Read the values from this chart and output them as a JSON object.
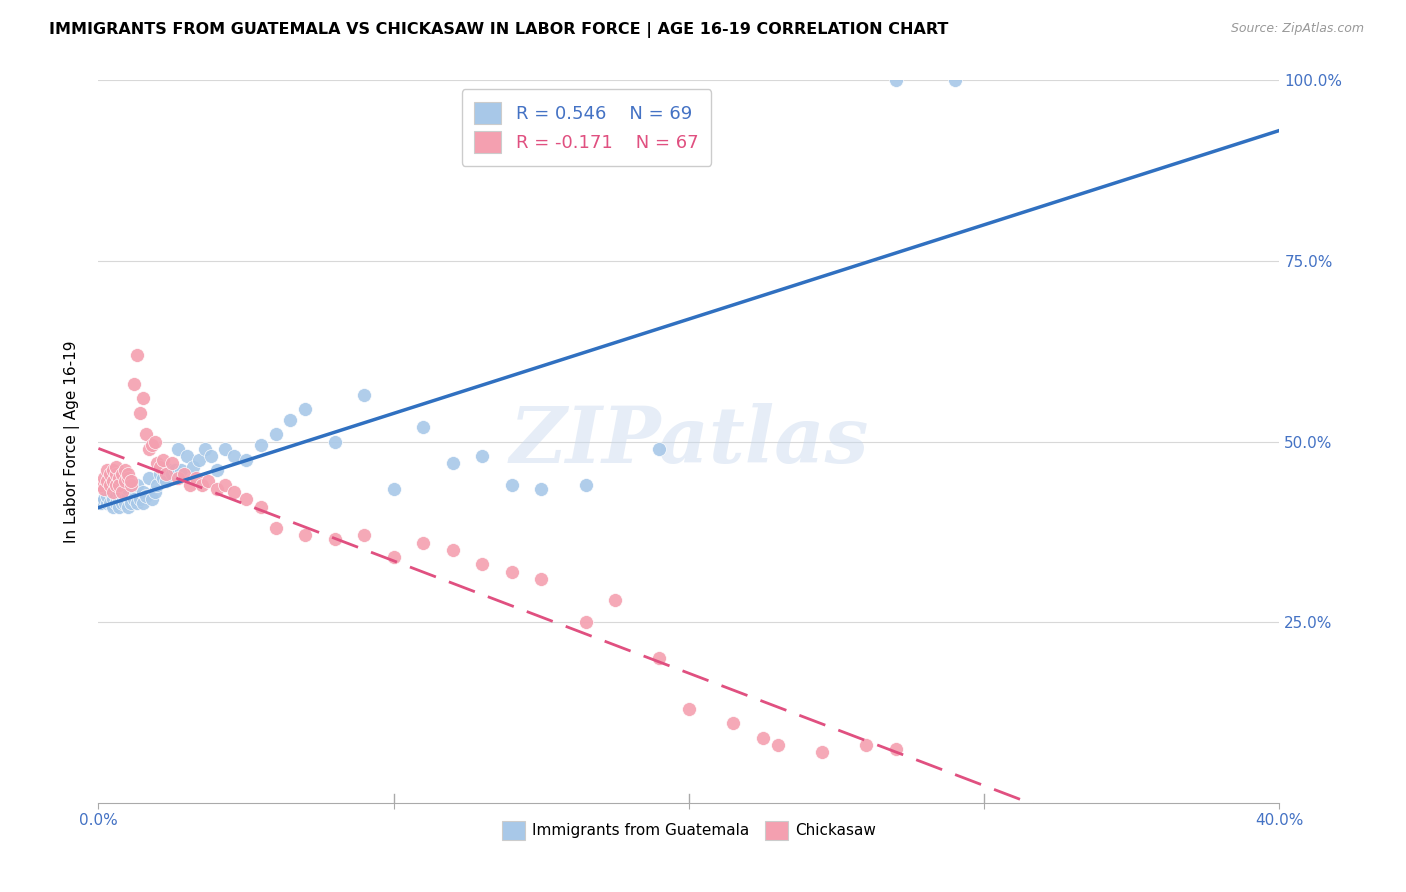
{
  "title": "IMMIGRANTS FROM GUATEMALA VS CHICKASAW IN LABOR FORCE | AGE 16-19 CORRELATION CHART",
  "source": "Source: ZipAtlas.com",
  "ylabel_ticks": [
    "25.0%",
    "50.0%",
    "75.0%",
    "100.0%"
  ],
  "xlabel_ticks_vals": [
    0.0,
    0.1,
    0.2,
    0.3,
    0.4
  ],
  "xlabel_ticks_labels": [
    "",
    "",
    "",
    "",
    ""
  ],
  "legend_blue_R": "R = 0.546",
  "legend_blue_N": "N = 69",
  "legend_pink_R": "R = -0.171",
  "legend_pink_N": "N = 67",
  "blue_color": "#a8c8e8",
  "pink_color": "#f4a0b0",
  "blue_line_color": "#3070c0",
  "pink_line_color": "#e05080",
  "watermark": "ZIPatlas",
  "blue_label": "Immigrants from Guatemala",
  "pink_label": "Chickasaw",
  "blue_scatter_x": [
    0.001,
    0.002,
    0.003,
    0.003,
    0.004,
    0.004,
    0.005,
    0.005,
    0.005,
    0.006,
    0.006,
    0.007,
    0.007,
    0.007,
    0.008,
    0.008,
    0.008,
    0.009,
    0.009,
    0.01,
    0.01,
    0.01,
    0.011,
    0.011,
    0.012,
    0.012,
    0.013,
    0.013,
    0.014,
    0.015,
    0.015,
    0.016,
    0.017,
    0.018,
    0.019,
    0.02,
    0.021,
    0.022,
    0.023,
    0.024,
    0.025,
    0.026,
    0.027,
    0.028,
    0.03,
    0.032,
    0.034,
    0.036,
    0.038,
    0.04,
    0.043,
    0.046,
    0.05,
    0.055,
    0.06,
    0.065,
    0.07,
    0.08,
    0.09,
    0.1,
    0.11,
    0.12,
    0.13,
    0.14,
    0.15,
    0.165,
    0.19,
    0.27,
    0.29
  ],
  "blue_scatter_y": [
    0.415,
    0.42,
    0.415,
    0.425,
    0.43,
    0.415,
    0.41,
    0.42,
    0.435,
    0.425,
    0.415,
    0.42,
    0.43,
    0.41,
    0.415,
    0.425,
    0.44,
    0.42,
    0.415,
    0.41,
    0.425,
    0.435,
    0.42,
    0.415,
    0.43,
    0.42,
    0.415,
    0.44,
    0.42,
    0.415,
    0.43,
    0.425,
    0.45,
    0.42,
    0.43,
    0.44,
    0.455,
    0.45,
    0.445,
    0.46,
    0.455,
    0.46,
    0.49,
    0.46,
    0.48,
    0.465,
    0.475,
    0.49,
    0.48,
    0.46,
    0.49,
    0.48,
    0.475,
    0.495,
    0.51,
    0.53,
    0.545,
    0.5,
    0.565,
    0.435,
    0.52,
    0.47,
    0.48,
    0.44,
    0.435,
    0.44,
    0.49,
    1.0,
    1.0
  ],
  "pink_scatter_x": [
    0.001,
    0.002,
    0.002,
    0.003,
    0.003,
    0.004,
    0.004,
    0.005,
    0.005,
    0.005,
    0.006,
    0.006,
    0.006,
    0.007,
    0.007,
    0.008,
    0.008,
    0.009,
    0.009,
    0.01,
    0.01,
    0.011,
    0.011,
    0.012,
    0.013,
    0.014,
    0.015,
    0.016,
    0.017,
    0.018,
    0.019,
    0.02,
    0.021,
    0.022,
    0.023,
    0.025,
    0.027,
    0.029,
    0.031,
    0.033,
    0.035,
    0.037,
    0.04,
    0.043,
    0.046,
    0.05,
    0.055,
    0.06,
    0.07,
    0.08,
    0.09,
    0.1,
    0.11,
    0.12,
    0.13,
    0.14,
    0.15,
    0.165,
    0.175,
    0.19,
    0.2,
    0.215,
    0.225,
    0.23,
    0.245,
    0.26,
    0.27
  ],
  "pink_scatter_y": [
    0.44,
    0.435,
    0.45,
    0.445,
    0.46,
    0.44,
    0.455,
    0.445,
    0.46,
    0.43,
    0.44,
    0.455,
    0.465,
    0.45,
    0.44,
    0.455,
    0.43,
    0.46,
    0.445,
    0.45,
    0.455,
    0.44,
    0.445,
    0.58,
    0.62,
    0.54,
    0.56,
    0.51,
    0.49,
    0.495,
    0.5,
    0.47,
    0.465,
    0.475,
    0.455,
    0.47,
    0.45,
    0.455,
    0.44,
    0.45,
    0.44,
    0.445,
    0.435,
    0.44,
    0.43,
    0.42,
    0.41,
    0.38,
    0.37,
    0.365,
    0.37,
    0.34,
    0.36,
    0.35,
    0.33,
    0.32,
    0.31,
    0.25,
    0.28,
    0.2,
    0.13,
    0.11,
    0.09,
    0.08,
    0.07,
    0.08,
    0.075
  ]
}
